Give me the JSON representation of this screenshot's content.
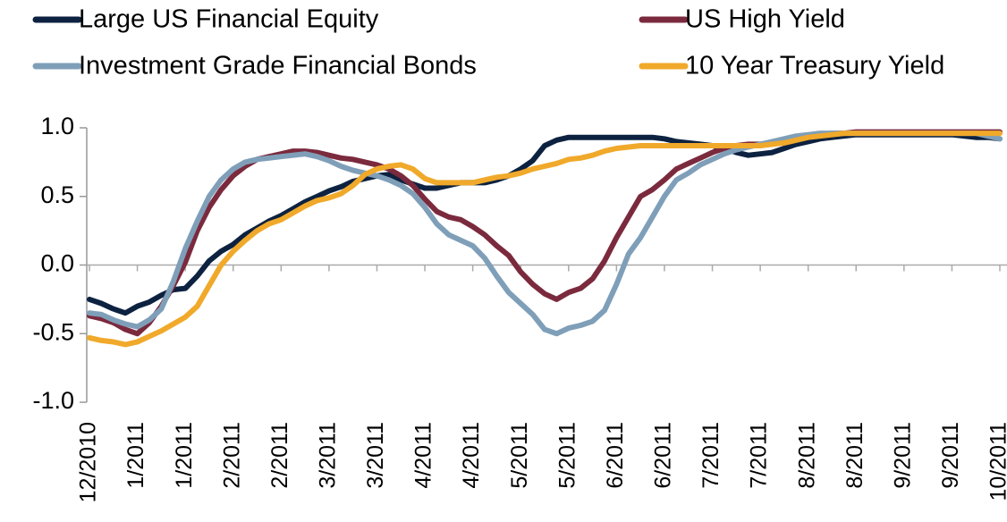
{
  "chart_data": {
    "type": "line",
    "categories": [
      "12/2010",
      null,
      null,
      null,
      "1/2011",
      null,
      null,
      null,
      "1/2011",
      null,
      null,
      null,
      "2/2011",
      null,
      null,
      null,
      "2/2011",
      null,
      null,
      null,
      "3/2011",
      null,
      null,
      null,
      "3/2011",
      null,
      null,
      null,
      "4/2011",
      null,
      null,
      null,
      "4/2011",
      null,
      null,
      null,
      "5/2011",
      null,
      null,
      null,
      "5/2011",
      null,
      null,
      null,
      "6/2011",
      null,
      null,
      null,
      "6/2011",
      null,
      null,
      null,
      "7/2011",
      null,
      null,
      null,
      "7/2011",
      null,
      null,
      null,
      "8/2011",
      null,
      null,
      null,
      "8/2011",
      null,
      null,
      null,
      "9/2011",
      null,
      null,
      null,
      "9/2011",
      null,
      null,
      null,
      "10/2011"
    ],
    "series": [
      {
        "name": "Large US Financial Equity",
        "color": "#0d2240",
        "values": [
          -0.25,
          -0.28,
          -0.32,
          -0.35,
          -0.3,
          -0.27,
          -0.22,
          -0.18,
          -0.17,
          -0.08,
          0.03,
          0.1,
          0.15,
          0.22,
          0.27,
          0.32,
          0.36,
          0.41,
          0.46,
          0.5,
          0.54,
          0.57,
          0.61,
          0.63,
          0.65,
          0.66,
          0.62,
          0.59,
          0.56,
          0.56,
          0.58,
          0.6,
          0.6,
          0.6,
          0.62,
          0.65,
          0.7,
          0.76,
          0.87,
          0.91,
          0.93,
          0.93,
          0.93,
          0.93,
          0.93,
          0.93,
          0.93,
          0.93,
          0.92,
          0.9,
          0.89,
          0.88,
          0.87,
          0.85,
          0.82,
          0.8,
          0.81,
          0.82,
          0.85,
          0.88,
          0.9,
          0.92,
          0.93,
          0.94,
          0.95,
          0.95,
          0.95,
          0.95,
          0.95,
          0.95,
          0.95,
          0.95,
          0.95,
          0.94,
          0.93,
          0.93,
          0.92
        ]
      },
      {
        "name": "US High Yield",
        "color": "#7b2a3e",
        "values": [
          -0.37,
          -0.39,
          -0.42,
          -0.47,
          -0.5,
          -0.42,
          -0.3,
          -0.15,
          0.02,
          0.25,
          0.42,
          0.55,
          0.65,
          0.72,
          0.77,
          0.79,
          0.81,
          0.83,
          0.83,
          0.82,
          0.8,
          0.78,
          0.77,
          0.75,
          0.73,
          0.7,
          0.65,
          0.58,
          0.48,
          0.39,
          0.35,
          0.33,
          0.28,
          0.22,
          0.14,
          0.07,
          -0.05,
          -0.14,
          -0.21,
          -0.25,
          -0.2,
          -0.17,
          -0.1,
          0.03,
          0.2,
          0.35,
          0.5,
          0.55,
          0.62,
          0.7,
          0.74,
          0.78,
          0.82,
          0.85,
          0.87,
          0.88,
          0.88,
          0.89,
          0.91,
          0.93,
          0.94,
          0.95,
          0.96,
          0.96,
          0.97,
          0.97,
          0.97,
          0.97,
          0.97,
          0.97,
          0.97,
          0.97,
          0.97,
          0.97,
          0.97,
          0.97,
          0.97
        ]
      },
      {
        "name": "Investment Grade Financial Bonds",
        "color": "#7f9fb9",
        "values": [
          -0.35,
          -0.36,
          -0.4,
          -0.43,
          -0.45,
          -0.4,
          -0.32,
          -0.12,
          0.12,
          0.32,
          0.5,
          0.62,
          0.7,
          0.75,
          0.77,
          0.78,
          0.79,
          0.8,
          0.81,
          0.79,
          0.76,
          0.72,
          0.69,
          0.67,
          0.65,
          0.62,
          0.58,
          0.52,
          0.42,
          0.3,
          0.22,
          0.18,
          0.14,
          0.05,
          -0.08,
          -0.2,
          -0.28,
          -0.36,
          -0.47,
          -0.5,
          -0.46,
          -0.44,
          -0.41,
          -0.33,
          -0.14,
          0.08,
          0.2,
          0.35,
          0.5,
          0.62,
          0.67,
          0.73,
          0.77,
          0.81,
          0.84,
          0.86,
          0.88,
          0.9,
          0.92,
          0.94,
          0.95,
          0.96,
          0.96,
          0.96,
          0.96,
          0.96,
          0.96,
          0.96,
          0.96,
          0.96,
          0.96,
          0.96,
          0.96,
          0.96,
          0.96,
          0.94,
          0.92
        ]
      },
      {
        "name": "10 Year Treasury Yield",
        "color": "#f0a92a",
        "values": [
          -0.53,
          -0.55,
          -0.56,
          -0.58,
          -0.56,
          -0.52,
          -0.48,
          -0.43,
          -0.38,
          -0.3,
          -0.15,
          0,
          0.1,
          0.18,
          0.25,
          0.3,
          0.33,
          0.38,
          0.43,
          0.47,
          0.49,
          0.52,
          0.58,
          0.66,
          0.7,
          0.72,
          0.73,
          0.7,
          0.63,
          0.6,
          0.6,
          0.6,
          0.6,
          0.62,
          0.64,
          0.65,
          0.67,
          0.7,
          0.72,
          0.74,
          0.77,
          0.78,
          0.8,
          0.83,
          0.85,
          0.86,
          0.87,
          0.87,
          0.87,
          0.87,
          0.87,
          0.87,
          0.87,
          0.87,
          0.87,
          0.87,
          0.87,
          0.88,
          0.89,
          0.91,
          0.93,
          0.94,
          0.95,
          0.96,
          0.96,
          0.96,
          0.96,
          0.96,
          0.96,
          0.96,
          0.96,
          0.96,
          0.96,
          0.96,
          0.96,
          0.96,
          0.96
        ]
      }
    ],
    "ylim": [
      -1,
      1
    ],
    "yticks": [
      {
        "value": -1,
        "label": "-1.0"
      },
      -0.5,
      {
        "value": 0,
        "label": "0.0"
      },
      0.5,
      {
        "value": 1,
        "label": "1.0"
      }
    ],
    "legend": "top"
  }
}
